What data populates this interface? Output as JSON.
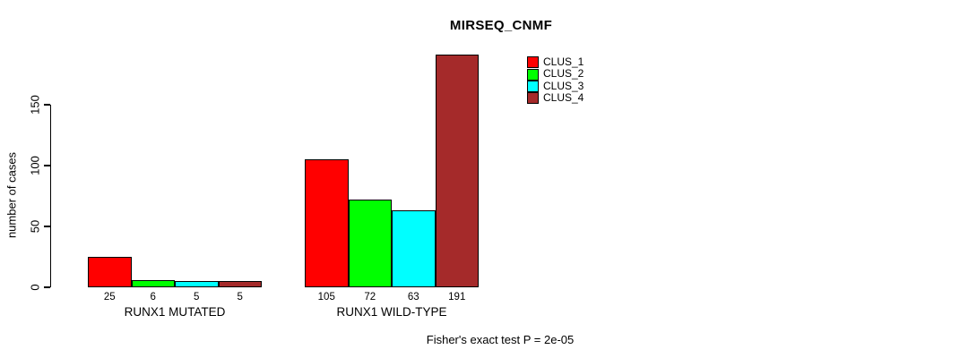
{
  "chart_data": {
    "type": "bar",
    "title": "MIRSEQ_CNMF",
    "ylabel": "number of cases",
    "xlabel": "",
    "categories": [
      "RUNX1 MUTATED",
      "RUNX1 WILD-TYPE"
    ],
    "series": [
      {
        "name": "CLUS_1",
        "color": "#FF0000",
        "values": [
          25,
          105
        ]
      },
      {
        "name": "CLUS_2",
        "color": "#00FF00",
        "values": [
          6,
          72
        ]
      },
      {
        "name": "CLUS_3",
        "color": "#00FFFF",
        "values": [
          5,
          63
        ]
      },
      {
        "name": "CLUS_4",
        "color": "#A52A2A",
        "values": [
          5,
          191
        ]
      }
    ],
    "yticks": [
      0,
      50,
      100,
      150
    ],
    "ylim": [
      0,
      195
    ],
    "grid": false,
    "legend_position": "top-right",
    "bar_value_labels_shown": true,
    "annotation": "Fisher's exact test P = 2e-05"
  }
}
